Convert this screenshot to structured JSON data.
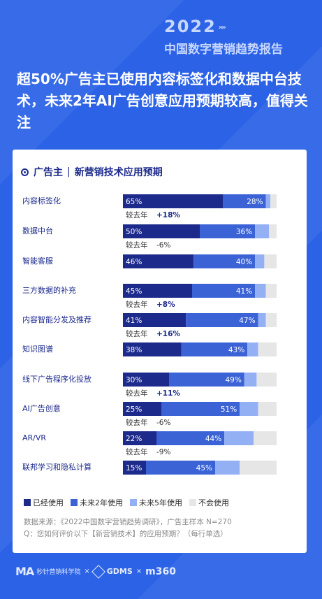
{
  "brand": {
    "year": "2022",
    "arrows": "»»",
    "title": "中国数字营销趋势报告"
  },
  "headline": "超50%广告主已使用内容标签化和数据中台技术，未来2年AI广告创意应用预期较高，值得关注",
  "card": {
    "title": "广告主",
    "separator": "|",
    "subtitle": "新营销技术应用预期"
  },
  "chart_data": {
    "type": "bar",
    "orientation": "horizontal",
    "stacked": true,
    "categories": [
      "内容标签化",
      "数据中台",
      "智能客服",
      "三方数据的补充",
      "内容智能分发及推荐",
      "知识图谱",
      "线下广告程序化投放",
      "AI广告创意",
      "AR/VR",
      "联邦学习和隐私计算"
    ],
    "series": [
      {
        "name": "已经使用",
        "values": [
          65,
          50,
          46,
          45,
          41,
          38,
          30,
          25,
          22,
          15
        ],
        "color": "#1c2a8c"
      },
      {
        "name": "未来2年使用",
        "values": [
          28,
          36,
          40,
          41,
          47,
          43,
          49,
          51,
          44,
          45
        ],
        "color": "#3b63d6"
      },
      {
        "name": "未来5年使用",
        "values": [
          3,
          9,
          6,
          7,
          5,
          7,
          8,
          12,
          19,
          16
        ],
        "color": "#93b0f5"
      },
      {
        "name": "不会使用",
        "values": [
          4,
          5,
          8,
          7,
          7,
          12,
          13,
          12,
          15,
          24
        ],
        "color": "#e6e6e6"
      }
    ],
    "value_labels": [
      [
        "65%",
        "28%"
      ],
      [
        "50%",
        "36%"
      ],
      [
        "46%",
        "40%"
      ],
      [
        "45%",
        "41%"
      ],
      [
        "41%",
        "47%"
      ],
      [
        "38%",
        "43%"
      ],
      [
        "30%",
        "49%"
      ],
      [
        "25%",
        "51%"
      ],
      [
        "22%",
        "44%"
      ],
      [
        "15%",
        "45%"
      ]
    ],
    "changes": [
      {
        "after": 0,
        "label": "较去年",
        "value": "+18%",
        "bold": true
      },
      {
        "after": 1,
        "label": "较去年",
        "value": "-6%",
        "bold": false
      },
      {
        "after": 3,
        "label": "较去年",
        "value": "+8%",
        "bold": true
      },
      {
        "after": 4,
        "label": "较去年",
        "value": "+16%",
        "bold": true
      },
      {
        "after": 6,
        "label": "较去年",
        "value": "+11%",
        "bold": true
      },
      {
        "after": 7,
        "label": "较去年",
        "value": "-6%",
        "bold": false
      },
      {
        "after": 8,
        "label": "较去年",
        "value": "-9%",
        "bold": false
      }
    ],
    "xlim": [
      0,
      100
    ]
  },
  "legend": [
    {
      "label": "已经使用",
      "color": "#1c2a8c"
    },
    {
      "label": "未来2年使用",
      "color": "#3b63d6"
    },
    {
      "label": "未来5年使用",
      "color": "#93b0f5"
    },
    {
      "label": "不会使用",
      "color": "#e6e6e6"
    }
  ],
  "source": {
    "line1": "数据来源：《2022中国数字营销趋势调研》，广告主样本 N=270",
    "line2": "Q：您如何评价以下【新营销技术】的应用预期？（每行单选）"
  },
  "footer": {
    "org1": "秒针营销科学院",
    "x1": "×",
    "org2": "GDMS",
    "x2": "×",
    "org3": "m360"
  }
}
